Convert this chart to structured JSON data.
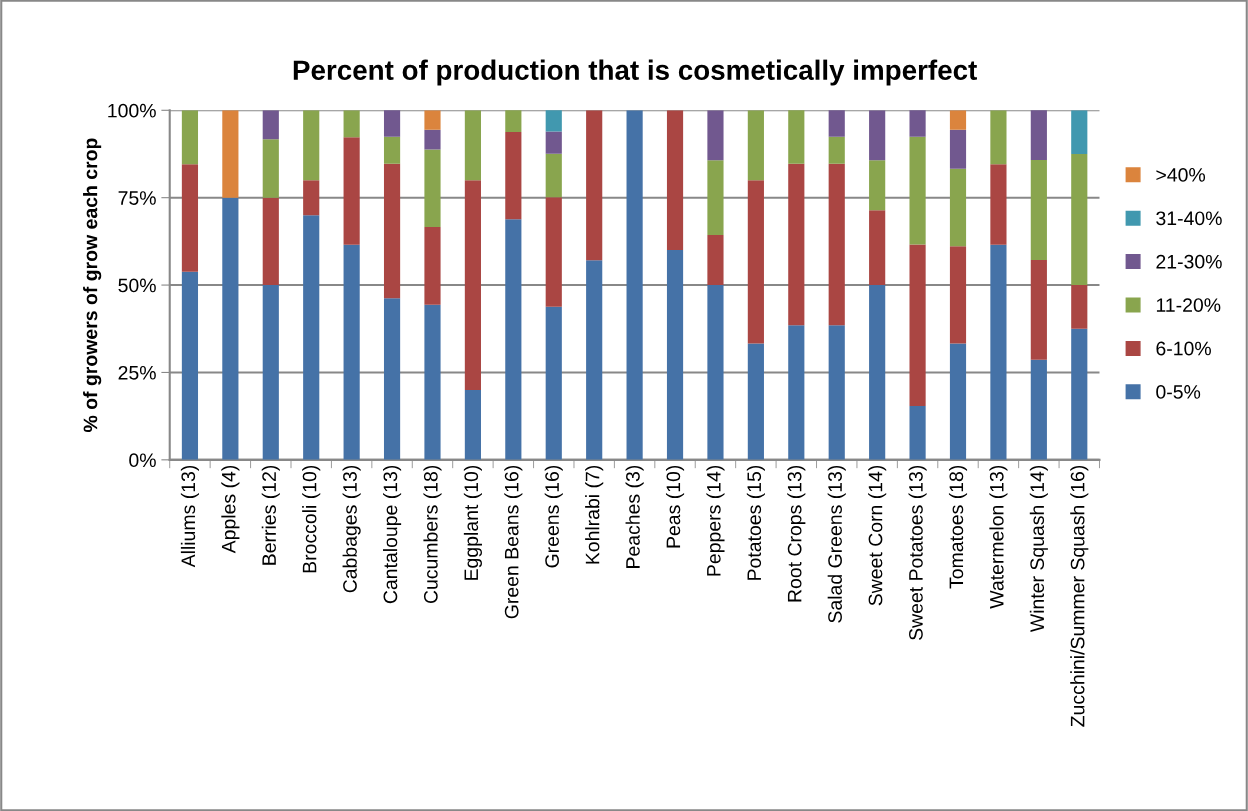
{
  "chart_data": {
    "type": "bar",
    "stacked": true,
    "title": "Percent of production that is cosmetically imperfect",
    "ylabel": "% of growers of grow each crop",
    "categories": [
      "Alliums (13)",
      "Apples (4)",
      "Berries (12)",
      "Broccoli (10)",
      "Cabbages (13)",
      "Cantaloupe (13)",
      "Cucumbers (18)",
      "Eggplant (10)",
      "Green Beans (16)",
      "Greens (16)",
      "Kohlrabi (7)",
      "Peaches (3)",
      "Peas (10)",
      "Peppers (14)",
      "Potatoes (15)",
      "Root Crops (13)",
      "Salad Greens (13)",
      "Sweet Corn (14)",
      "Sweet Potatoes (13)",
      "Tomatoes (18)",
      "Watermelon (13)",
      "Winter Squash (14)",
      "Zucchini/Summer Squash (16)"
    ],
    "series": [
      {
        "name": "0-5%",
        "color": "#4572a7",
        "values": [
          53.8,
          75,
          50,
          70,
          61.5,
          46.2,
          44.4,
          20,
          68.8,
          43.8,
          57.1,
          100,
          60,
          50,
          33.3,
          38.5,
          38.5,
          50,
          15.4,
          33.3,
          61.5,
          28.6,
          37.5
        ]
      },
      {
        "name": "6-10%",
        "color": "#aa4643",
        "values": [
          30.8,
          null,
          25,
          10,
          30.8,
          38.5,
          22.2,
          60,
          25,
          31.3,
          42.9,
          null,
          40,
          14.3,
          46.7,
          46.2,
          46.2,
          21.4,
          46.2,
          27.8,
          23.1,
          28.6,
          12.5
        ]
      },
      {
        "name": "11-20%",
        "color": "#89a54e",
        "values": [
          15.4,
          null,
          16.7,
          20,
          7.7,
          7.7,
          22.2,
          20,
          6.3,
          12.5,
          null,
          null,
          null,
          21.4,
          20,
          15.4,
          7.7,
          14.3,
          30.8,
          22.2,
          15.4,
          28.6,
          37.5
        ]
      },
      {
        "name": "21-30%",
        "color": "#71588f",
        "values": [
          null,
          null,
          8.3,
          null,
          null,
          7.7,
          5.6,
          null,
          null,
          6.3,
          null,
          null,
          null,
          14.3,
          null,
          null,
          7.7,
          14.3,
          7.7,
          11.1,
          null,
          14.3,
          null
        ]
      },
      {
        "name": "31-40%",
        "color": "#4198af",
        "values": [
          null,
          null,
          null,
          null,
          null,
          null,
          null,
          null,
          null,
          6.3,
          null,
          null,
          null,
          null,
          null,
          null,
          null,
          null,
          null,
          null,
          null,
          null,
          12.5
        ]
      },
      {
        "name": ">40%",
        "color": "#db843d",
        "values": [
          null,
          25,
          null,
          null,
          null,
          null,
          5.6,
          null,
          null,
          null,
          null,
          null,
          null,
          null,
          null,
          null,
          null,
          null,
          null,
          5.6,
          null,
          null,
          null
        ]
      }
    ],
    "ylim": [
      0,
      100
    ],
    "yticks": [
      {
        "value": 0,
        "label": "0%"
      },
      {
        "value": 25,
        "label": "25%"
      },
      {
        "value": 50,
        "label": "50%"
      },
      {
        "value": 75,
        "label": "75%"
      },
      {
        "value": 100,
        "label": "100%"
      }
    ],
    "grid": "y",
    "legend": "right"
  }
}
